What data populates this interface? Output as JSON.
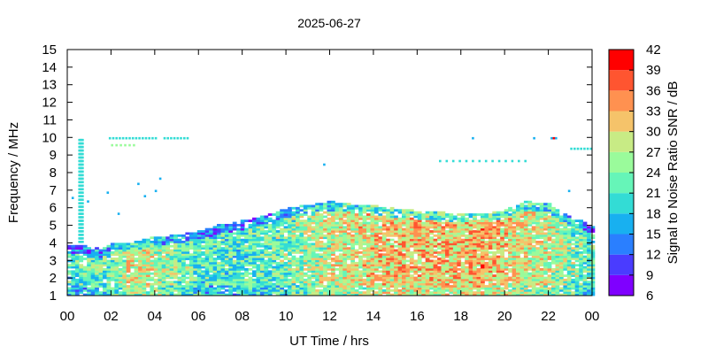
{
  "chart_data": {
    "type": "heatmap",
    "title": "2025-06-27",
    "xlabel": "UT Time / hrs",
    "ylabel": "Frequency / MHz",
    "colorbar_label": "Signal to Noise Ratio SNR / dB",
    "x_ticks": [
      "00",
      "02",
      "04",
      "06",
      "08",
      "10",
      "12",
      "14",
      "16",
      "18",
      "20",
      "22",
      "00"
    ],
    "y_ticks": [
      "1",
      "2",
      "3",
      "4",
      "5",
      "6",
      "7",
      "8",
      "9",
      "10",
      "11",
      "12",
      "13",
      "14",
      "15"
    ],
    "xlim": [
      0,
      24
    ],
    "ylim": [
      1,
      15
    ],
    "colorbar_ticks": [
      "6",
      "9",
      "12",
      "15",
      "18",
      "21",
      "24",
      "27",
      "30",
      "33",
      "36",
      "39",
      "42"
    ],
    "colorbar_range": [
      6,
      42
    ],
    "colorbar_colors": [
      "#7f00ff",
      "#4a3cff",
      "#2a7fff",
      "#18b0f0",
      "#33dcd5",
      "#66f5b8",
      "#9afb9b",
      "#c8eb85",
      "#f5c36a",
      "#ff9150",
      "#ff5530",
      "#ff0000"
    ],
    "upper_envelope_mhz": [
      [
        0.0,
        3.8
      ],
      [
        1.0,
        3.8
      ],
      [
        1.5,
        3.6
      ],
      [
        2.0,
        3.9
      ],
      [
        3.0,
        4.0
      ],
      [
        4.0,
        4.3
      ],
      [
        5.0,
        4.4
      ],
      [
        6.0,
        4.6
      ],
      [
        7.0,
        5.0
      ],
      [
        8.0,
        5.2
      ],
      [
        9.0,
        5.5
      ],
      [
        10.0,
        5.9
      ],
      [
        11.0,
        6.1
      ],
      [
        12.0,
        6.3
      ],
      [
        13.0,
        6.2
      ],
      [
        14.0,
        6.1
      ],
      [
        15.0,
        5.9
      ],
      [
        16.0,
        5.8
      ],
      [
        17.0,
        5.7
      ],
      [
        18.0,
        5.6
      ],
      [
        19.0,
        5.6
      ],
      [
        20.0,
        5.8
      ],
      [
        21.0,
        6.3
      ],
      [
        22.0,
        6.2
      ],
      [
        23.0,
        5.5
      ],
      [
        24.0,
        4.9
      ]
    ],
    "mean_snr_db_by_hour": [
      [
        0,
        20
      ],
      [
        2,
        24
      ],
      [
        3,
        30
      ],
      [
        4,
        27
      ],
      [
        6,
        22
      ],
      [
        8,
        21
      ],
      [
        10,
        24
      ],
      [
        12,
        28
      ],
      [
        14,
        30
      ],
      [
        16,
        32
      ],
      [
        18,
        31
      ],
      [
        19,
        33
      ],
      [
        20,
        30
      ],
      [
        22,
        28
      ],
      [
        24,
        22
      ]
    ]
  }
}
